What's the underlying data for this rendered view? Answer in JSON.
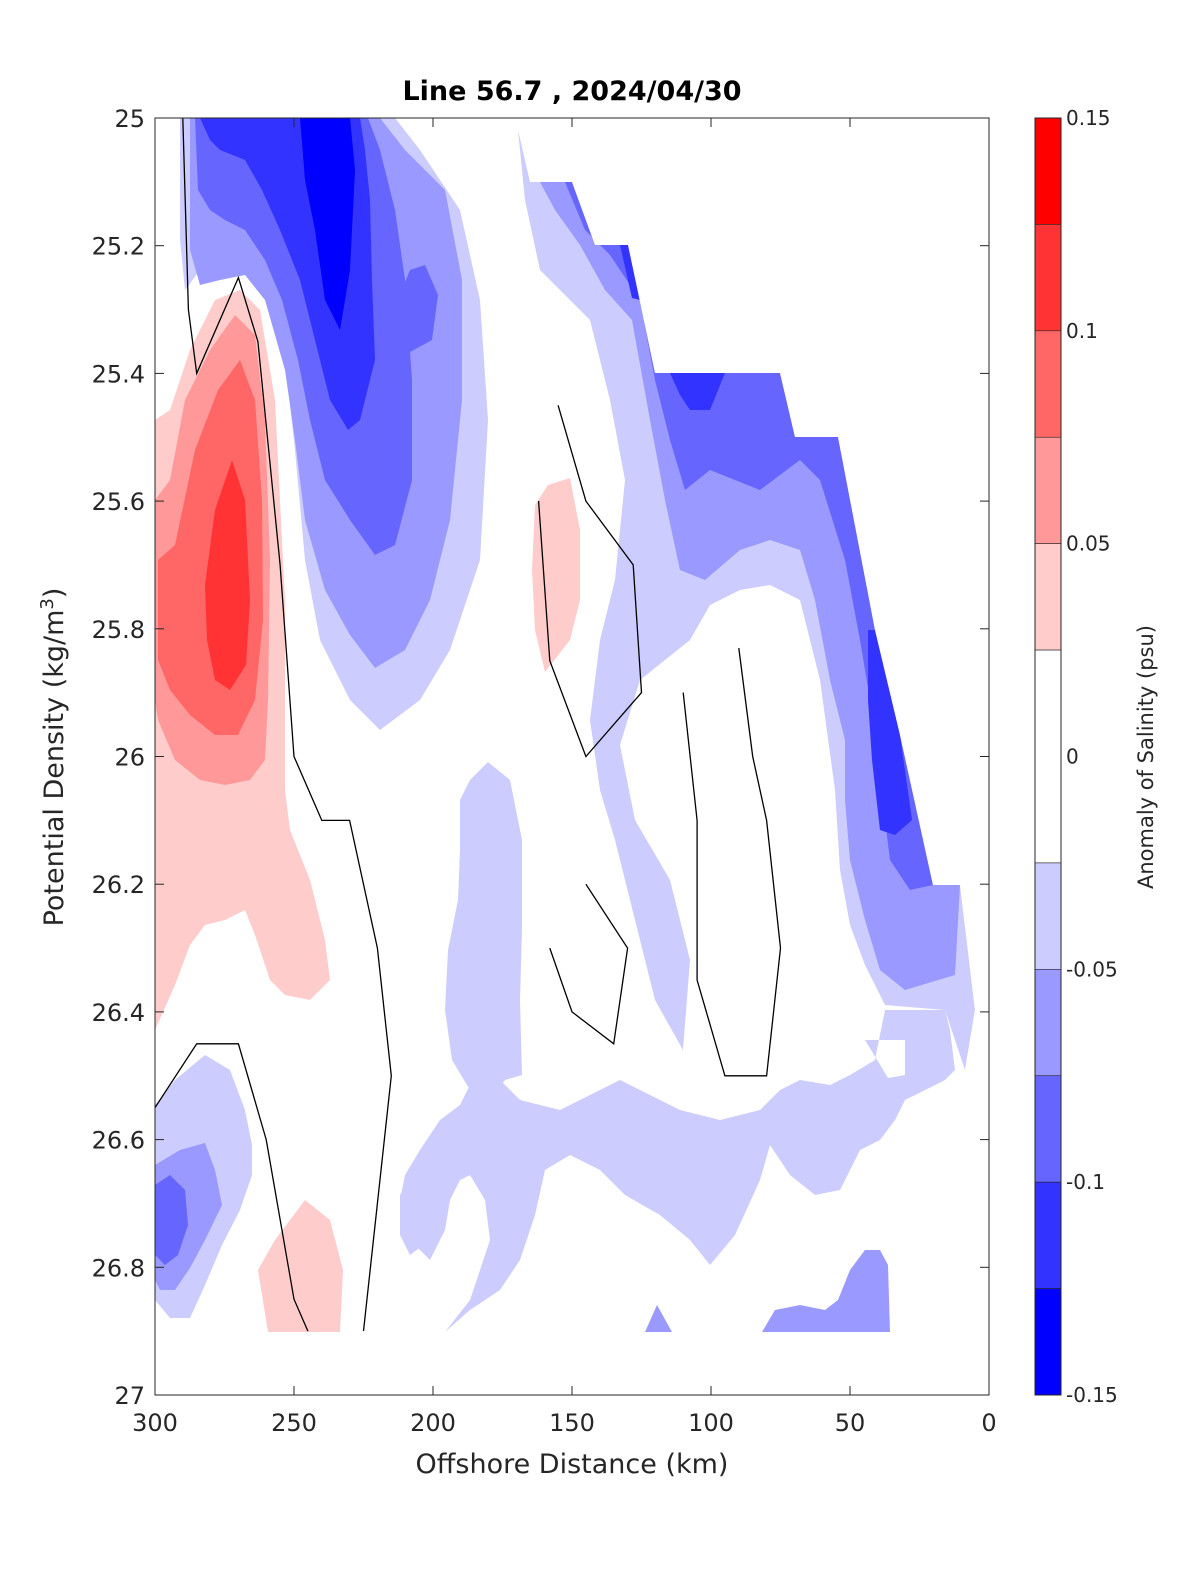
{
  "chart_data": {
    "type": "heatmap",
    "subtype": "filled-contour",
    "title": "Line 56.7 , 2024/04/30",
    "xlabel": "Offshore Distance (km)",
    "ylabel_main": "Potential Density (kg/m",
    "ylabel_sup": "3",
    "ylabel_close": ")",
    "xlim": [
      300,
      0
    ],
    "x_reversed": true,
    "ylim": [
      25,
      27
    ],
    "y_reversed": true,
    "xticks": [
      "300",
      "250",
      "200",
      "150",
      "100",
      "50",
      "0"
    ],
    "yticks": [
      "25",
      "25.2",
      "25.4",
      "25.6",
      "25.8",
      "26",
      "26.2",
      "26.4",
      "26.6",
      "26.8",
      "27"
    ],
    "colorbar": {
      "label": "Anomaly of Salinity (psu)",
      "range": [
        -0.15,
        0.15
      ],
      "ticks": [
        "0.15",
        "0.1",
        "0.05",
        "0",
        "-0.05",
        "-0.1",
        "-0.15"
      ],
      "levels": [
        {
          "lo": 0.125,
          "hi": 0.15,
          "color": "#ff0000"
        },
        {
          "lo": 0.1,
          "hi": 0.125,
          "color": "#ff3333"
        },
        {
          "lo": 0.075,
          "hi": 0.1,
          "color": "#ff6666"
        },
        {
          "lo": 0.05,
          "hi": 0.075,
          "color": "#ff9999"
        },
        {
          "lo": 0.025,
          "hi": 0.05,
          "color": "#ffcccc"
        },
        {
          "lo": -0.025,
          "hi": 0.025,
          "color": "#ffffff"
        },
        {
          "lo": -0.05,
          "hi": -0.025,
          "color": "#ccccff"
        },
        {
          "lo": -0.075,
          "hi": -0.05,
          "color": "#9999ff"
        },
        {
          "lo": -0.1,
          "hi": -0.075,
          "color": "#6666ff"
        },
        {
          "lo": -0.125,
          "hi": -0.1,
          "color": "#3333ff"
        },
        {
          "lo": -0.15,
          "hi": -0.125,
          "color": "#0000ff"
        }
      ]
    },
    "regions": [
      {
        "name": "nearshore-light-negative",
        "level": -0.0375,
        "points": [
          [
            180,
            25.1
          ],
          [
            165,
            25.1
          ],
          [
            148,
            25.2
          ],
          [
            118,
            25.4
          ],
          [
            97,
            25.4
          ],
          [
            75,
            25.5
          ],
          [
            48,
            25.5
          ],
          [
            38,
            25.8
          ],
          [
            20,
            26.2
          ],
          [
            10,
            26.2
          ],
          [
            5,
            26.4
          ],
          [
            10,
            26.5
          ],
          [
            20,
            26.4
          ],
          [
            40,
            26.4
          ],
          [
            45,
            26.3
          ],
          [
            60,
            26.2
          ],
          [
            70,
            26.0
          ],
          [
            75,
            25.8
          ],
          [
            90,
            25.8
          ],
          [
            100,
            25.7
          ],
          [
            118,
            25.85
          ],
          [
            130,
            25.9
          ],
          [
            135,
            26.2
          ],
          [
            140,
            26.4
          ],
          [
            125,
            26.5
          ],
          [
            110,
            26.45
          ],
          [
            100,
            26.4
          ],
          [
            90,
            26.35
          ],
          [
            85,
            26.1
          ],
          [
            80,
            25.9
          ],
          [
            70,
            25.85
          ],
          [
            55,
            25.75
          ],
          [
            45,
            25.75
          ],
          [
            40,
            25.6
          ],
          [
            60,
            25.6
          ],
          [
            78,
            25.6
          ],
          [
            95,
            25.6
          ],
          [
            110,
            25.55
          ],
          [
            130,
            25.45
          ],
          [
            150,
            25.35
          ],
          [
            168,
            25.2
          ],
          [
            175,
            25.1
          ]
        ]
      },
      {
        "name": "offshore-upper-light-negative",
        "level": -0.0375,
        "points": [
          [
            283,
            25.0
          ],
          [
            200,
            25.0
          ],
          [
            182,
            25.2
          ],
          [
            178,
            25.4
          ],
          [
            180,
            25.6
          ],
          [
            190,
            25.8
          ],
          [
            200,
            25.95
          ],
          [
            215,
            26.0
          ],
          [
            235,
            25.8
          ],
          [
            245,
            25.6
          ],
          [
            250,
            25.4
          ],
          [
            262,
            25.25
          ],
          [
            278,
            25.15
          ],
          [
            285,
            25.05
          ]
        ]
      },
      {
        "name": "mid-lower-light-negative",
        "level": -0.0375,
        "points": [
          [
            195,
            26.6
          ],
          [
            170,
            26.7
          ],
          [
            160,
            26.55
          ],
          [
            150,
            26.6
          ],
          [
            130,
            26.7
          ],
          [
            100,
            26.8
          ],
          [
            80,
            26.7
          ],
          [
            55,
            26.7
          ],
          [
            40,
            26.62
          ],
          [
            35,
            26.5
          ],
          [
            30,
            26.55
          ],
          [
            35,
            26.9
          ],
          [
            195,
            26.9
          ],
          [
            180,
            26.8
          ]
        ]
      },
      {
        "name": "mid-column-light-negative",
        "level": -0.0375,
        "points": [
          [
            180,
            26.0
          ],
          [
            170,
            26.1
          ],
          [
            168,
            26.3
          ],
          [
            178,
            26.5
          ],
          [
            185,
            26.55
          ],
          [
            195,
            26.5
          ],
          [
            200,
            26.3
          ],
          [
            195,
            26.05
          ]
        ]
      },
      {
        "name": "bottom-left-light-negative",
        "level": -0.0375,
        "points": [
          [
            300,
            26.65
          ],
          [
            295,
            26.5
          ],
          [
            285,
            26.45
          ],
          [
            270,
            26.55
          ],
          [
            265,
            26.7
          ],
          [
            268,
            26.85
          ],
          [
            285,
            26.9
          ],
          [
            300,
            26.85
          ]
        ]
      }
    ],
    "contours": [
      {
        "level": 0.0,
        "points": [
          [
            290,
            25.0
          ],
          [
            288,
            25.3
          ],
          [
            285,
            25.4
          ],
          [
            270,
            25.25
          ],
          [
            263,
            25.35
          ],
          [
            255,
            25.7
          ],
          [
            250,
            26.0
          ],
          [
            240,
            26.1
          ],
          [
            230,
            26.1
          ],
          [
            220,
            26.3
          ],
          [
            215,
            26.5
          ],
          [
            220,
            26.7
          ],
          [
            225,
            26.9
          ]
        ]
      },
      {
        "level": 0.0,
        "points": [
          [
            155,
            25.45
          ],
          [
            145,
            25.6
          ],
          [
            128,
            25.7
          ],
          [
            125,
            25.9
          ],
          [
            145,
            26.0
          ],
          [
            158,
            25.85
          ],
          [
            162,
            25.6
          ]
        ]
      },
      {
        "level": 0.0,
        "points": [
          [
            90,
            25.83
          ],
          [
            85,
            26.0
          ],
          [
            80,
            26.1
          ],
          [
            75,
            26.3
          ],
          [
            80,
            26.5
          ],
          [
            95,
            26.5
          ],
          [
            105,
            26.35
          ],
          [
            105,
            26.1
          ],
          [
            110,
            25.9
          ]
        ]
      },
      {
        "level": 0.0,
        "points": [
          [
            145,
            26.2
          ],
          [
            130,
            26.3
          ],
          [
            135,
            26.45
          ],
          [
            150,
            26.4
          ],
          [
            158,
            26.3
          ]
        ]
      },
      {
        "level": 0.0,
        "points": [
          [
            300,
            26.55
          ],
          [
            285,
            26.45
          ],
          [
            270,
            26.45
          ],
          [
            260,
            26.6
          ],
          [
            250,
            26.85
          ],
          [
            245,
            26.9
          ]
        ]
      }
    ]
  }
}
